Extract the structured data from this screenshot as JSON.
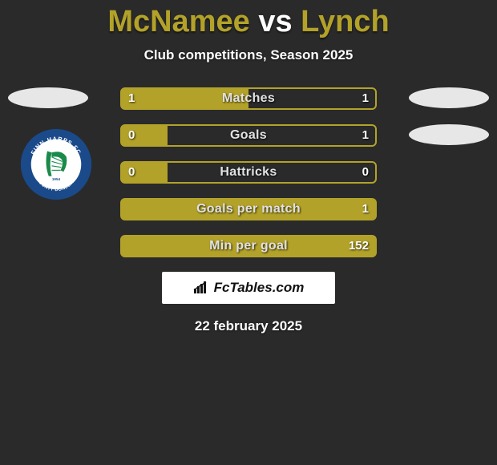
{
  "colors": {
    "background": "#2a2a2a",
    "accent": "#b3a229",
    "accent_dark": "#8f821f",
    "white": "#ffffff",
    "oval": "#e7e7e7",
    "title_p1": "#b3a229",
    "title_vs": "#ffffff",
    "title_p2": "#b3a229"
  },
  "title": {
    "player1": "McNamee",
    "vs": "vs",
    "player2": "Lynch"
  },
  "subtitle": "Club competitions, Season 2025",
  "crest": {
    "outer_text_top": "FINN HARPS FC",
    "outer_text_bottom": "COUNTY DONEGAL",
    "year": "1954",
    "ring_color": "#1a4a8a",
    "inner_bg": "#ffffff",
    "harp_color": "#1a8a4a"
  },
  "bars": {
    "border_color": "#b3a229",
    "fill_color": "#b3a229",
    "rows": [
      {
        "label": "Matches",
        "left": "1",
        "right": "1",
        "fill_pct": 50,
        "show_left": true
      },
      {
        "label": "Goals",
        "left": "0",
        "right": "1",
        "fill_pct": 18,
        "show_left": true
      },
      {
        "label": "Hattricks",
        "left": "0",
        "right": "0",
        "fill_pct": 18,
        "show_left": true
      },
      {
        "label": "Goals per match",
        "left": "",
        "right": "1",
        "fill_pct": 100,
        "show_left": false
      },
      {
        "label": "Min per goal",
        "left": "",
        "right": "152",
        "fill_pct": 100,
        "show_left": false
      }
    ]
  },
  "brand": "FcTables.com",
  "date": "22 february 2025"
}
